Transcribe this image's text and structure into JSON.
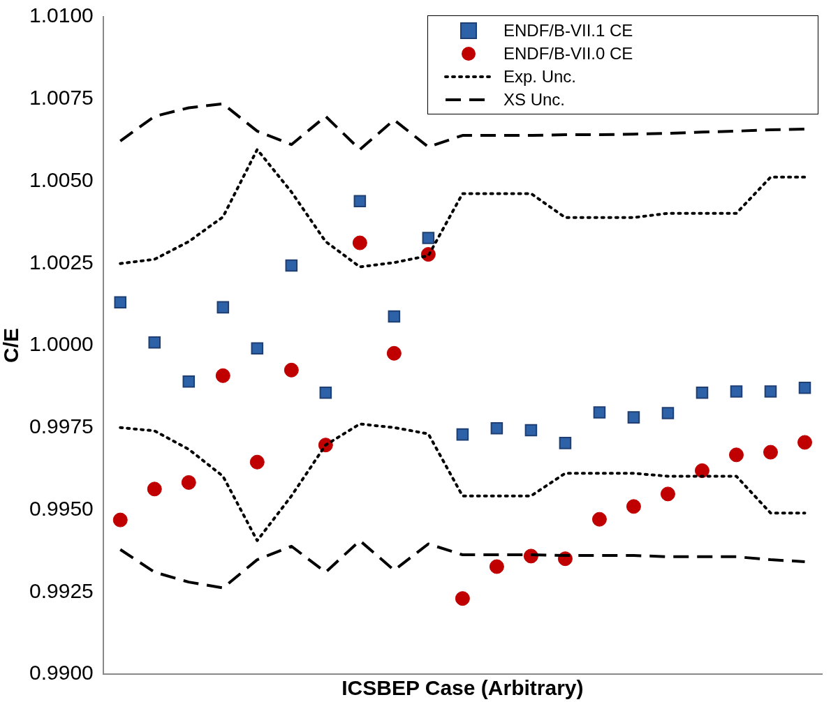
{
  "chart_data": {
    "type": "scatter",
    "xlabel": "ICSBEP Case (Arbitrary)",
    "ylabel": "C/E",
    "categories": [
      null,
      null,
      null,
      null,
      null,
      null,
      null,
      null,
      null,
      null,
      null,
      null,
      null,
      null,
      null,
      null,
      null,
      null,
      null,
      null,
      null
    ],
    "ylim": [
      0.99,
      1.01
    ],
    "yticks": [
      {
        "value": 0.99,
        "label": "0.9900"
      },
      {
        "value": 0.9925,
        "label": "0.9925"
      },
      {
        "value": 0.995,
        "label": "0.9950"
      },
      {
        "value": 0.9975,
        "label": "0.9975"
      },
      {
        "value": 1.0,
        "label": "1.0000"
      },
      {
        "value": 1.0025,
        "label": "1.0025"
      },
      {
        "value": 1.005,
        "label": "1.0050"
      },
      {
        "value": 1.0075,
        "label": "1.0075"
      },
      {
        "value": 1.01,
        "label": "1.0100"
      }
    ],
    "tick_labels": "y",
    "grid": false,
    "legend": "top right",
    "series": [
      {
        "name": "ENDF/B-VII.1 CE",
        "type": "scatter",
        "marker": "square",
        "color": "#2e62a8",
        "values": [
          1.00131,
          1.00009,
          0.9989,
          1.00116,
          0.99991,
          1.00243,
          0.99856,
          1.00439,
          1.00088,
          1.00327,
          0.99729,
          0.99748,
          0.99742,
          0.99703,
          0.99796,
          0.99781,
          0.99794,
          0.99856,
          0.9986,
          0.9986,
          0.99871
        ]
      },
      {
        "name": "ENDF/B-VII.0 CE",
        "type": "scatter",
        "marker": "circle",
        "color": "#c00000",
        "values": [
          0.99469,
          0.99563,
          0.99583,
          0.99908,
          0.99645,
          0.99925,
          0.99697,
          1.00312,
          0.99976,
          1.00277,
          0.9923,
          0.99327,
          0.99359,
          0.99351,
          0.99471,
          0.9951,
          0.99548,
          0.99619,
          0.99667,
          0.99675,
          0.99705
        ]
      },
      {
        "name": "Exp. Unc.",
        "type": "line",
        "marker": "none",
        "line_style": "dotted",
        "color": "#000000",
        "values": [
          1.00249,
          1.00262,
          1.00316,
          1.00391,
          1.00596,
          1.00467,
          1.00316,
          1.00239,
          1.00252,
          1.00273,
          1.00462,
          1.00462,
          1.00462,
          1.00389,
          1.00389,
          1.00389,
          1.00402,
          1.00402,
          1.00402,
          1.00512,
          1.00512
        ]
      },
      {
        "type": "line",
        "marker": "none",
        "line_style": "dotted",
        "color": "#000000",
        "values": [
          0.9975,
          0.9974,
          0.99684,
          0.99602,
          0.99406,
          0.99542,
          0.99697,
          0.99761,
          0.9975,
          0.99731,
          0.99542,
          0.99542,
          0.99542,
          0.99611,
          0.99611,
          0.99611,
          0.99602,
          0.99602,
          0.99602,
          0.9949,
          0.9949
        ]
      },
      {
        "name": "XS Unc.",
        "type": "line",
        "marker": "none",
        "line_style": "dashed",
        "color": "#000000",
        "values": [
          1.00622,
          1.00697,
          1.00723,
          1.00735,
          1.00652,
          1.00611,
          1.00697,
          1.00596,
          1.00686,
          1.00604,
          1.00639,
          1.00639,
          1.00639,
          1.00641,
          1.00641,
          1.00643,
          1.00645,
          1.00649,
          1.00652,
          1.00656,
          1.00658
        ]
      },
      {
        "type": "line",
        "marker": "none",
        "line_style": "dashed",
        "color": "#000000",
        "values": [
          0.99379,
          0.9931,
          0.9928,
          0.99262,
          0.99348,
          0.99389,
          0.9931,
          0.99406,
          0.99316,
          0.99396,
          0.99363,
          0.99363,
          0.99363,
          0.99361,
          0.99361,
          0.99361,
          0.99357,
          0.99357,
          0.99357,
          0.99348,
          0.99342
        ]
      }
    ]
  }
}
